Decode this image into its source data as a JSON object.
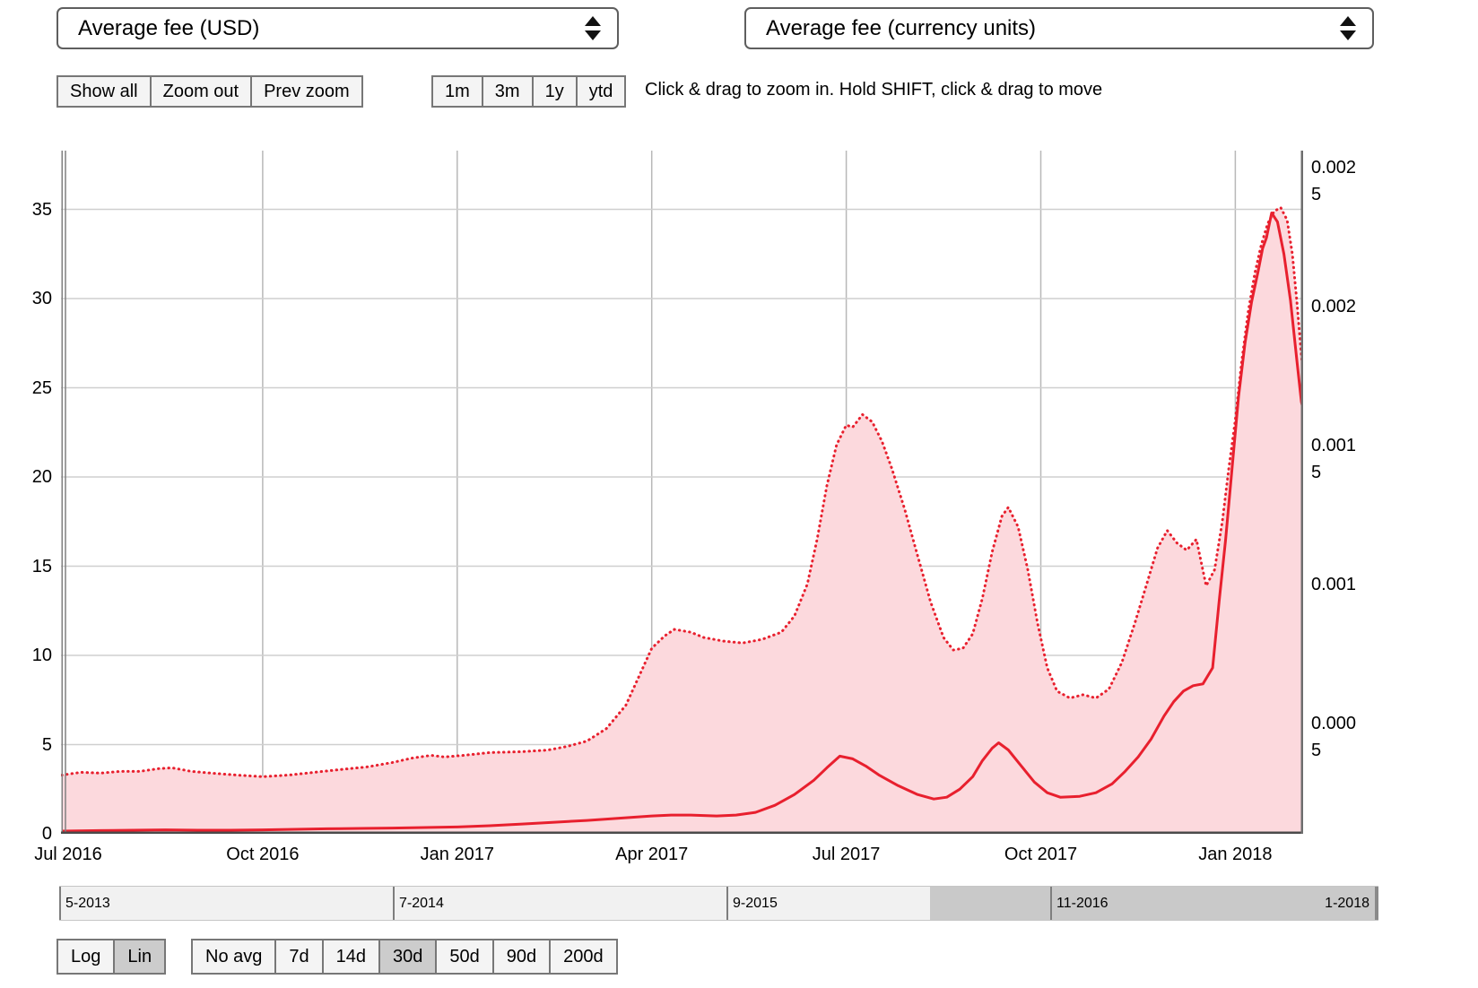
{
  "colors": {
    "accent_red": "#e8202e",
    "fill_pink": "#fcd9dd",
    "button_active_bg": "#cccccc",
    "slider_selected_bg": "#c9c9c9"
  },
  "controls": {
    "metric_select_left": "Average fee (USD)",
    "metric_select_right": "Average fee (currency units)",
    "zoom_buttons": [
      {
        "label": "Show all",
        "active": false
      },
      {
        "label": "Zoom out",
        "active": false
      },
      {
        "label": "Prev zoom",
        "active": false
      }
    ],
    "range_buttons": [
      {
        "label": "1m",
        "active": false
      },
      {
        "label": "3m",
        "active": false
      },
      {
        "label": "1y",
        "active": false
      },
      {
        "label": "ytd",
        "active": false
      }
    ],
    "hint": "Click & drag to zoom in. Hold SHIFT, click & drag to move",
    "scale_buttons": [
      {
        "label": "Log",
        "active": false
      },
      {
        "label": "Lin",
        "active": true
      }
    ],
    "avg_buttons": [
      {
        "label": "No avg",
        "active": false
      },
      {
        "label": "7d",
        "active": false
      },
      {
        "label": "14d",
        "active": false
      },
      {
        "label": "30d",
        "active": true
      },
      {
        "label": "50d",
        "active": false
      },
      {
        "label": "90d",
        "active": false
      },
      {
        "label": "200d",
        "active": false
      }
    ]
  },
  "chart_data": {
    "type": "line",
    "title": "",
    "xlabel": "",
    "ylabel": "",
    "x_unit": "months since Jul 2016 (fractional)",
    "grid": true,
    "legend": "none",
    "x_ticks": [
      {
        "m": 0,
        "label": "Jul 2016"
      },
      {
        "m": 3,
        "label": "Oct 2016"
      },
      {
        "m": 6,
        "label": "Jan 2017"
      },
      {
        "m": 9,
        "label": "Apr 2017"
      },
      {
        "m": 12,
        "label": "Jul 2017"
      },
      {
        "m": 15,
        "label": "Oct 2017"
      },
      {
        "m": 18,
        "label": "Jan 2018"
      }
    ],
    "left_axis": {
      "ticks": [
        0,
        5,
        10,
        15,
        20,
        25,
        30,
        35
      ],
      "visible_max": 38.3
    },
    "right_axis": {
      "ticks": [
        {
          "value": 0.0025,
          "lines": [
            "0.002",
            "5"
          ]
        },
        {
          "value": 0.002,
          "lines": [
            "0.002"
          ]
        },
        {
          "value": 0.0015,
          "lines": [
            "0.001",
            "5"
          ]
        },
        {
          "value": 0.001,
          "lines": [
            "0.001"
          ]
        },
        {
          "value": 0.0005,
          "lines": [
            "0.000",
            "5"
          ]
        }
      ]
    },
    "series": [
      {
        "name": "Average fee (USD)",
        "axis": "left",
        "style": "solid",
        "fill": false,
        "points": [
          [
            -0.1,
            0.15
          ],
          [
            0.5,
            0.18
          ],
          [
            1.0,
            0.2
          ],
          [
            1.5,
            0.22
          ],
          [
            2.0,
            0.2
          ],
          [
            2.5,
            0.2
          ],
          [
            3.0,
            0.22
          ],
          [
            3.5,
            0.25
          ],
          [
            4.0,
            0.28
          ],
          [
            4.5,
            0.3
          ],
          [
            5.0,
            0.32
          ],
          [
            5.5,
            0.35
          ],
          [
            6.0,
            0.38
          ],
          [
            6.5,
            0.45
          ],
          [
            7.0,
            0.55
          ],
          [
            7.5,
            0.65
          ],
          [
            8.0,
            0.75
          ],
          [
            8.4,
            0.85
          ],
          [
            8.8,
            0.95
          ],
          [
            9.0,
            1.0
          ],
          [
            9.3,
            1.05
          ],
          [
            9.6,
            1.05
          ],
          [
            10.0,
            1.0
          ],
          [
            10.3,
            1.05
          ],
          [
            10.6,
            1.2
          ],
          [
            10.9,
            1.6
          ],
          [
            11.2,
            2.2
          ],
          [
            11.5,
            3.0
          ],
          [
            11.7,
            3.7
          ],
          [
            11.9,
            4.35
          ],
          [
            12.1,
            4.2
          ],
          [
            12.3,
            3.8
          ],
          [
            12.5,
            3.3
          ],
          [
            12.8,
            2.7
          ],
          [
            13.1,
            2.2
          ],
          [
            13.35,
            1.95
          ],
          [
            13.55,
            2.05
          ],
          [
            13.75,
            2.5
          ],
          [
            13.95,
            3.2
          ],
          [
            14.1,
            4.1
          ],
          [
            14.25,
            4.8
          ],
          [
            14.35,
            5.1
          ],
          [
            14.5,
            4.7
          ],
          [
            14.7,
            3.8
          ],
          [
            14.9,
            2.9
          ],
          [
            15.1,
            2.3
          ],
          [
            15.3,
            2.05
          ],
          [
            15.6,
            2.1
          ],
          [
            15.85,
            2.3
          ],
          [
            16.1,
            2.8
          ],
          [
            16.3,
            3.5
          ],
          [
            16.5,
            4.3
          ],
          [
            16.7,
            5.3
          ],
          [
            16.9,
            6.6
          ],
          [
            17.05,
            7.4
          ],
          [
            17.2,
            8.0
          ],
          [
            17.35,
            8.3
          ],
          [
            17.5,
            8.4
          ],
          [
            17.65,
            9.3
          ],
          [
            17.75,
            13.0
          ],
          [
            17.85,
            16.5
          ],
          [
            17.95,
            20.5
          ],
          [
            18.05,
            24.5
          ],
          [
            18.15,
            27.5
          ],
          [
            18.25,
            29.8
          ],
          [
            18.35,
            31.5
          ],
          [
            18.42,
            32.8
          ],
          [
            18.48,
            33.4
          ],
          [
            18.56,
            34.8
          ],
          [
            18.65,
            34.3
          ],
          [
            18.75,
            32.5
          ],
          [
            18.85,
            29.9
          ],
          [
            18.95,
            26.5
          ],
          [
            19.02,
            24.2
          ],
          [
            19.06,
            23.6
          ]
        ]
      },
      {
        "name": "Average fee (currency units)",
        "axis": "right",
        "style": "dotted",
        "fill": true,
        "points": [
          [
            -0.1,
            0.000363
          ],
          [
            0.2,
            0.000373
          ],
          [
            0.5,
            0.00037
          ],
          [
            0.8,
            0.000376
          ],
          [
            1.1,
            0.000376
          ],
          [
            1.4,
            0.000386
          ],
          [
            1.6,
            0.000389
          ],
          [
            1.9,
            0.000376
          ],
          [
            2.2,
            0.00037
          ],
          [
            2.6,
            0.000363
          ],
          [
            3.0,
            0.000357
          ],
          [
            3.4,
            0.000363
          ],
          [
            3.8,
            0.000373
          ],
          [
            4.2,
            0.000383
          ],
          [
            4.6,
            0.000392
          ],
          [
            5.0,
            0.000408
          ],
          [
            5.3,
            0.000424
          ],
          [
            5.6,
            0.000434
          ],
          [
            5.8,
            0.000428
          ],
          [
            6.1,
            0.000434
          ],
          [
            6.5,
            0.000444
          ],
          [
            7.0,
            0.000447
          ],
          [
            7.4,
            0.000453
          ],
          [
            7.7,
            0.000466
          ],
          [
            8.0,
            0.000485
          ],
          [
            8.3,
            0.00053
          ],
          [
            8.6,
            0.000614
          ],
          [
            8.8,
            0.000716
          ],
          [
            9.0,
            0.000819
          ],
          [
            9.2,
            0.000864
          ],
          [
            9.35,
            0.000887
          ],
          [
            9.6,
            0.000877
          ],
          [
            9.8,
            0.000858
          ],
          [
            10.1,
            0.000845
          ],
          [
            10.4,
            0.000838
          ],
          [
            10.7,
            0.000851
          ],
          [
            11.0,
            0.000877
          ],
          [
            11.2,
            0.000935
          ],
          [
            11.4,
            0.00105
          ],
          [
            11.55,
            0.001211
          ],
          [
            11.7,
            0.001403
          ],
          [
            11.85,
            0.001551
          ],
          [
            12.0,
            0.001622
          ],
          [
            12.1,
            0.001615
          ],
          [
            12.25,
            0.00166
          ],
          [
            12.4,
            0.001634
          ],
          [
            12.55,
            0.001564
          ],
          [
            12.7,
            0.001468
          ],
          [
            12.9,
            0.00132
          ],
          [
            13.1,
            0.001153
          ],
          [
            13.3,
            0.000986
          ],
          [
            13.5,
            0.000858
          ],
          [
            13.65,
            0.000813
          ],
          [
            13.8,
            0.000819
          ],
          [
            13.95,
            0.000871
          ],
          [
            14.1,
            0.000999
          ],
          [
            14.25,
            0.001166
          ],
          [
            14.4,
            0.001294
          ],
          [
            14.5,
            0.001326
          ],
          [
            14.65,
            0.001256
          ],
          [
            14.8,
            0.001102
          ],
          [
            14.95,
            0.000909
          ],
          [
            15.1,
            0.000749
          ],
          [
            15.25,
            0.000665
          ],
          [
            15.45,
            0.00064
          ],
          [
            15.65,
            0.000652
          ],
          [
            15.85,
            0.00064
          ],
          [
            16.05,
            0.000672
          ],
          [
            16.25,
            0.000768
          ],
          [
            16.45,
            0.000909
          ],
          [
            16.65,
            0.001063
          ],
          [
            16.8,
            0.001179
          ],
          [
            16.95,
            0.001243
          ],
          [
            17.1,
            0.001198
          ],
          [
            17.25,
            0.001172
          ],
          [
            17.4,
            0.001211
          ],
          [
            17.55,
            0.001044
          ],
          [
            17.68,
            0.001102
          ],
          [
            17.8,
            0.001275
          ],
          [
            17.9,
            0.001468
          ],
          [
            18.0,
            0.001641
          ],
          [
            18.1,
            0.001853
          ],
          [
            18.2,
            0.002033
          ],
          [
            18.3,
            0.002167
          ],
          [
            18.4,
            0.00227
          ],
          [
            18.5,
            0.002347
          ],
          [
            18.6,
            0.002392
          ],
          [
            18.7,
            0.002405
          ],
          [
            18.8,
            0.00236
          ],
          [
            18.88,
            0.002238
          ],
          [
            18.95,
            0.002065
          ],
          [
            19.02,
            0.001872
          ],
          [
            19.06,
            0.001776
          ]
        ]
      }
    ]
  },
  "slider": {
    "ticks": [
      {
        "label": "5-2013",
        "pos": 0
      },
      {
        "label": "7-2014",
        "pos": 0.2529
      },
      {
        "label": "9-2015",
        "pos": 0.5058
      },
      {
        "label": "11-2016",
        "pos": 0.7512
      }
    ],
    "end_label": "1-2018",
    "selected_range": [
      0.66,
      1.0
    ]
  }
}
